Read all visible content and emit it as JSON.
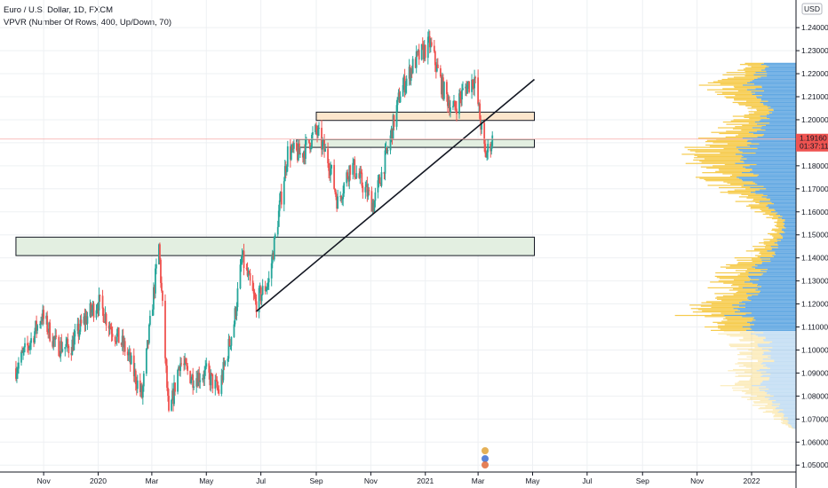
{
  "header": {
    "title": "Euro / U.S. Dollar, 1D, FXCM",
    "indicator": "VPVR (Number Of Rows, 400, Up/Down, 70)"
  },
  "currency_label": "USD",
  "price_label": {
    "price": "1.19160",
    "countdown": "01:37:11"
  },
  "colors": {
    "up": "#26a69a",
    "down": "#ef5350",
    "vp_up": "#5aa3e0",
    "vp_down": "#f5c842",
    "green_zone": "#e3efe1",
    "orange_zone": "#fde6cc",
    "price_badge": "#ef5350"
  },
  "chart_data": {
    "type": "candlestick",
    "symbol": "EURUSD",
    "timeframe": "1D",
    "y_ticks": [
      "1.24000",
      "1.23000",
      "1.22000",
      "1.21000",
      "1.20000",
      "1.19000",
      "1.18000",
      "1.17000",
      "1.16000",
      "1.15000",
      "1.14000",
      "1.13000",
      "1.12000",
      "1.11000",
      "1.10000",
      "1.09000",
      "1.08000",
      "1.07000",
      "1.06000",
      "1.05000"
    ],
    "x_ticks": [
      "Nov",
      "2020",
      "Mar",
      "May",
      "Jul",
      "Sep",
      "Nov",
      "2021",
      "Mar",
      "May",
      "Jul",
      "Sep",
      "Nov",
      "2022"
    ],
    "ylim": [
      1.047,
      1.252
    ],
    "last_price": 1.1916,
    "price_path": [
      [
        "2019-10-01",
        1.092
      ],
      [
        "2019-10-15",
        1.102
      ],
      [
        "2019-10-30",
        1.115
      ],
      [
        "2019-11-15",
        1.102
      ],
      [
        "2019-12-01",
        1.101
      ],
      [
        "2019-12-15",
        1.112
      ],
      [
        "2020-01-01",
        1.121
      ],
      [
        "2020-01-15",
        1.11
      ],
      [
        "2020-02-01",
        1.1
      ],
      [
        "2020-02-19",
        1.08
      ],
      [
        "2020-03-09",
        1.145
      ],
      [
        "2020-03-20",
        1.07
      ],
      [
        "2020-04-01",
        1.095
      ],
      [
        "2020-04-15",
        1.088
      ],
      [
        "2020-05-01",
        1.09
      ],
      [
        "2020-05-15",
        1.082
      ],
      [
        "2020-06-01",
        1.112
      ],
      [
        "2020-06-10",
        1.14
      ],
      [
        "2020-06-25",
        1.12
      ],
      [
        "2020-07-10",
        1.13
      ],
      [
        "2020-07-31",
        1.186
      ],
      [
        "2020-08-15",
        1.185
      ],
      [
        "2020-09-01",
        1.195
      ],
      [
        "2020-09-15",
        1.182
      ],
      [
        "2020-09-25",
        1.164
      ],
      [
        "2020-10-10",
        1.181
      ],
      [
        "2020-11-04",
        1.163
      ],
      [
        "2020-11-20",
        1.187
      ],
      [
        "2020-12-04",
        1.212
      ],
      [
        "2020-12-20",
        1.225
      ],
      [
        "2021-01-06",
        1.233
      ],
      [
        "2021-01-20",
        1.214
      ],
      [
        "2021-02-01",
        1.204
      ],
      [
        "2021-02-15",
        1.214
      ],
      [
        "2021-02-25",
        1.218
      ],
      [
        "2021-03-09",
        1.184
      ],
      [
        "2021-03-17",
        1.1916
      ]
    ],
    "zones": [
      {
        "color": "green",
        "top": 1.149,
        "bottom": 1.141,
        "from": "2019-10-01",
        "to": "2021-05-03"
      },
      {
        "color": "green",
        "top": 1.1915,
        "bottom": 1.188,
        "from": "2020-08-10",
        "to": "2021-05-03"
      },
      {
        "color": "orange",
        "top": 1.2033,
        "bottom": 1.1997,
        "from": "2020-09-01",
        "to": "2021-05-03"
      }
    ],
    "trendline": {
      "from": [
        "2020-06-26",
        1.1168
      ],
      "to": [
        "2021-05-03",
        1.2175
      ]
    },
    "volume_profile": {
      "bands": [
        {
          "price": 1.225,
          "up": 0.32,
          "down": 0.18
        },
        {
          "price": 1.215,
          "up": 0.55,
          "down": 0.45
        },
        {
          "price": 1.205,
          "up": 0.3,
          "down": 0.22
        },
        {
          "price": 1.195,
          "up": 0.48,
          "down": 0.38
        },
        {
          "price": 1.185,
          "up": 0.62,
          "down": 0.55
        },
        {
          "price": 1.175,
          "up": 0.58,
          "down": 0.4
        },
        {
          "price": 1.165,
          "up": 0.38,
          "down": 0.25
        },
        {
          "price": 1.155,
          "up": 0.12,
          "down": 0.08
        },
        {
          "price": 1.145,
          "up": 0.25,
          "down": 0.18
        },
        {
          "price": 1.135,
          "up": 0.45,
          "down": 0.32
        },
        {
          "price": 1.125,
          "up": 0.55,
          "down": 0.35
        },
        {
          "price": 1.115,
          "up": 0.7,
          "down": 0.48
        },
        {
          "price": 1.105,
          "up": 0.38,
          "down": 0.28
        },
        {
          "price": 1.095,
          "up": 0.35,
          "down": 0.26
        },
        {
          "price": 1.085,
          "up": 0.45,
          "down": 0.32
        },
        {
          "price": 1.075,
          "up": 0.22,
          "down": 0.18
        },
        {
          "price": 1.066,
          "up": 0.04,
          "down": 0.03
        }
      ]
    }
  }
}
